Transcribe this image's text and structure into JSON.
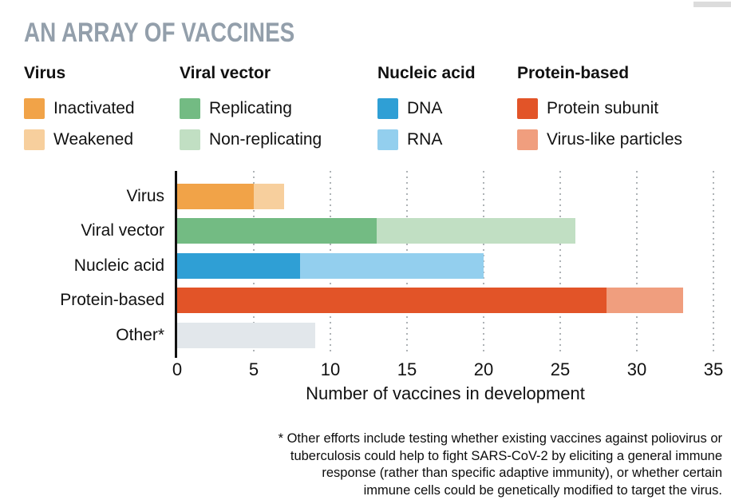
{
  "title": "AN ARRAY OF VACCINES",
  "title_color": "#939FAB",
  "legend": {
    "groups": [
      {
        "title": "Virus",
        "items": [
          {
            "label": "Inactivated",
            "color": "#F1A348"
          },
          {
            "label": "Weakened",
            "color": "#F7CF9D"
          }
        ]
      },
      {
        "title": "Viral vector",
        "items": [
          {
            "label": "Replicating",
            "color": "#73BB83"
          },
          {
            "label": "Non-replicating",
            "color": "#C1DFC3"
          }
        ]
      },
      {
        "title": "Nucleic acid",
        "items": [
          {
            "label": "DNA",
            "color": "#2F9FD5"
          },
          {
            "label": "RNA",
            "color": "#93CFEE"
          }
        ]
      },
      {
        "title": "Protein-based",
        "items": [
          {
            "label": "Protein subunit",
            "color": "#E25428"
          },
          {
            "label": "Virus-like particles",
            "color": "#F09E7E"
          }
        ]
      }
    ]
  },
  "chart_data": {
    "type": "bar",
    "orientation": "horizontal",
    "stacked": true,
    "xlabel": "Number of vaccines in development",
    "xlim": [
      0,
      35
    ],
    "ticks": [
      0,
      5,
      10,
      15,
      20,
      25,
      30,
      35
    ],
    "grid": "dotted-vertical",
    "rows": [
      {
        "label": "Virus",
        "segments": [
          {
            "name": "Inactivated",
            "value": 5,
            "color": "#F1A348"
          },
          {
            "name": "Weakened",
            "value": 2,
            "color": "#F7CF9D"
          }
        ]
      },
      {
        "label": "Viral vector",
        "segments": [
          {
            "name": "Replicating",
            "value": 13,
            "color": "#73BB83"
          },
          {
            "name": "Non-replicating",
            "value": 13,
            "color": "#C1DFC3"
          }
        ]
      },
      {
        "label": "Nucleic acid",
        "segments": [
          {
            "name": "DNA",
            "value": 8,
            "color": "#2F9FD5"
          },
          {
            "name": "RNA",
            "value": 12,
            "color": "#93CFEE"
          }
        ]
      },
      {
        "label": "Protein-based",
        "segments": [
          {
            "name": "Protein subunit",
            "value": 28,
            "color": "#E25428"
          },
          {
            "name": "Virus-like particles",
            "value": 5,
            "color": "#F09E7E"
          }
        ]
      },
      {
        "label": "Other*",
        "segments": [
          {
            "name": "Other",
            "value": 9,
            "color": "#E2E7EB"
          }
        ]
      }
    ]
  },
  "footnote_lines": [
    "* Other efforts include testing whether existing vaccines against poliovirus or",
    "tuberculosis could help to fight SARS-CoV-2 by eliciting a general immune",
    "response (rather than specific adaptive immunity), or whether certain",
    "immune cells could be genetically modified to target the virus."
  ]
}
